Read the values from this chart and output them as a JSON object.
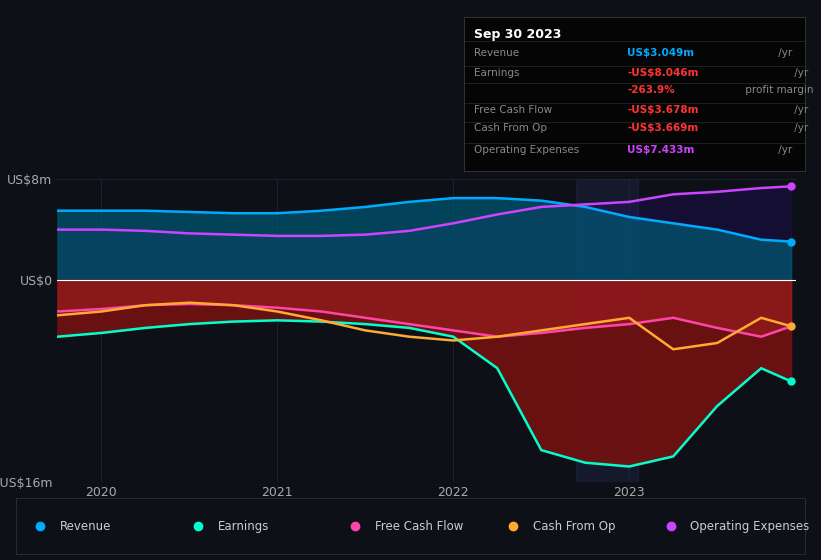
{
  "bg_color": "#0d1117",
  "chart_bg": "#0d1117",
  "ylim": [
    -16,
    8
  ],
  "xlim": [
    2019.75,
    2023.95
  ],
  "x_ticks": [
    2020,
    2021,
    2022,
    2023
  ],
  "grid_color": "#1e2a3a",
  "zero_line_color": "#ffffff",
  "info_box": {
    "title": "Sep 30 2023",
    "rows": [
      {
        "label": "Revenue",
        "value": "US$3.049m",
        "suffix": " /yr",
        "value_color": "#00aaff"
      },
      {
        "label": "Earnings",
        "value": "-US$8.046m",
        "suffix": " /yr",
        "value_color": "#ff3333"
      },
      {
        "label": "",
        "value": "-263.9%",
        "suffix": " profit margin",
        "value_color": "#ff3333"
      },
      {
        "label": "Free Cash Flow",
        "value": "-US$3.678m",
        "suffix": " /yr",
        "value_color": "#ff3333"
      },
      {
        "label": "Cash From Op",
        "value": "-US$3.669m",
        "suffix": " /yr",
        "value_color": "#ff3333"
      },
      {
        "label": "Operating Expenses",
        "value": "US$7.433m",
        "suffix": " /yr",
        "value_color": "#cc44ff"
      }
    ]
  },
  "series": {
    "revenue": {
      "color": "#00aaff",
      "fill_color": "#005570",
      "label": "Revenue",
      "x": [
        2019.75,
        2020.0,
        2020.25,
        2020.5,
        2020.75,
        2021.0,
        2021.25,
        2021.5,
        2021.75,
        2022.0,
        2022.25,
        2022.5,
        2022.75,
        2023.0,
        2023.25,
        2023.5,
        2023.75,
        2023.92
      ],
      "y": [
        5.5,
        5.5,
        5.5,
        5.4,
        5.3,
        5.3,
        5.5,
        5.8,
        6.2,
        6.5,
        6.5,
        6.3,
        5.8,
        5.0,
        4.5,
        4.0,
        3.2,
        3.049
      ]
    },
    "op_expenses": {
      "color": "#cc44ff",
      "fill_color": "#1a0f45",
      "label": "Operating Expenses",
      "x": [
        2019.75,
        2020.0,
        2020.25,
        2020.5,
        2020.75,
        2021.0,
        2021.25,
        2021.5,
        2021.75,
        2022.0,
        2022.25,
        2022.5,
        2022.75,
        2023.0,
        2023.25,
        2023.5,
        2023.75,
        2023.92
      ],
      "y": [
        4.0,
        4.0,
        3.9,
        3.7,
        3.6,
        3.5,
        3.5,
        3.6,
        3.9,
        4.5,
        5.2,
        5.8,
        6.0,
        6.2,
        6.8,
        7.0,
        7.3,
        7.433
      ]
    },
    "earnings": {
      "color": "#00ffcc",
      "label": "Earnings",
      "x": [
        2019.75,
        2020.0,
        2020.25,
        2020.5,
        2020.75,
        2021.0,
        2021.25,
        2021.5,
        2021.75,
        2022.0,
        2022.25,
        2022.5,
        2022.75,
        2023.0,
        2023.25,
        2023.5,
        2023.75,
        2023.92
      ],
      "y": [
        -4.5,
        -4.2,
        -3.8,
        -3.5,
        -3.3,
        -3.2,
        -3.3,
        -3.5,
        -3.8,
        -4.5,
        -7.0,
        -13.5,
        -14.5,
        -14.8,
        -14.0,
        -10.0,
        -7.0,
        -8.046
      ]
    },
    "free_cash_flow": {
      "color": "#ff44aa",
      "label": "Free Cash Flow",
      "x": [
        2019.75,
        2020.0,
        2020.25,
        2020.5,
        2020.75,
        2021.0,
        2021.25,
        2021.5,
        2021.75,
        2022.0,
        2022.25,
        2022.5,
        2022.75,
        2023.0,
        2023.25,
        2023.5,
        2023.75,
        2023.92
      ],
      "y": [
        -2.5,
        -2.3,
        -2.0,
        -1.9,
        -2.0,
        -2.2,
        -2.5,
        -3.0,
        -3.5,
        -4.0,
        -4.5,
        -4.2,
        -3.8,
        -3.5,
        -3.0,
        -3.8,
        -4.5,
        -3.678
      ]
    },
    "cash_from_op": {
      "color": "#ffaa33",
      "label": "Cash From Op",
      "x": [
        2019.75,
        2020.0,
        2020.25,
        2020.5,
        2020.75,
        2021.0,
        2021.25,
        2021.5,
        2021.75,
        2022.0,
        2022.25,
        2022.5,
        2022.75,
        2023.0,
        2023.25,
        2023.5,
        2023.75,
        2023.92
      ],
      "y": [
        -2.8,
        -2.5,
        -2.0,
        -1.8,
        -2.0,
        -2.5,
        -3.2,
        -4.0,
        -4.5,
        -4.8,
        -4.5,
        -4.0,
        -3.5,
        -3.0,
        -5.5,
        -5.0,
        -3.0,
        -3.669
      ]
    }
  },
  "legend": [
    {
      "label": "Revenue",
      "color": "#00aaff"
    },
    {
      "label": "Earnings",
      "color": "#00ffcc"
    },
    {
      "label": "Free Cash Flow",
      "color": "#ff44aa"
    },
    {
      "label": "Cash From Op",
      "color": "#ffaa33"
    },
    {
      "label": "Operating Expenses",
      "color": "#cc44ff"
    }
  ]
}
